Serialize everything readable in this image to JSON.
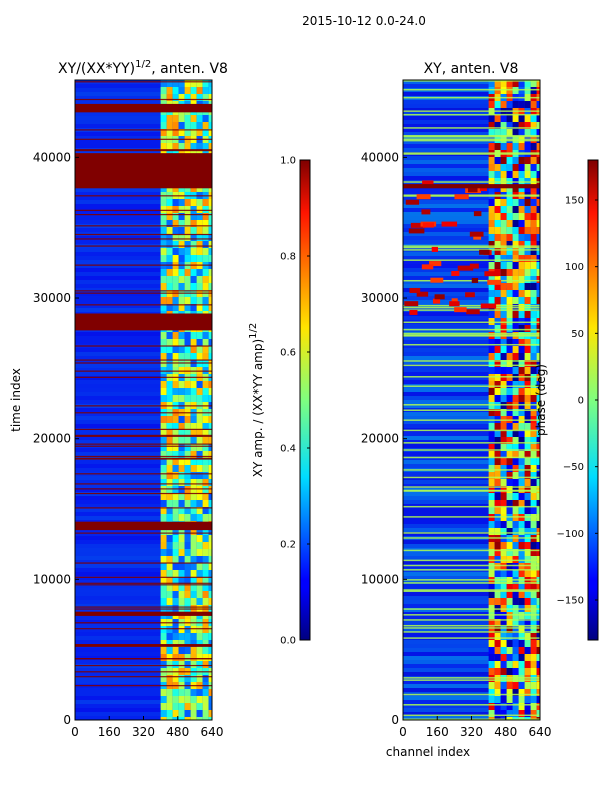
{
  "suptitle": "2015-10-12 0.0-24.0",
  "chart_data": [
    {
      "type": "heatmap",
      "title_main": "XY/(XX*YY)",
      "title_sup": "1/2",
      "title_rest": ", anten. V8",
      "xlabel": "",
      "ylabel": "time index",
      "xlim": [
        0,
        640
      ],
      "ylim": [
        0,
        45500
      ],
      "xticks": [
        0,
        160,
        320,
        480,
        640
      ],
      "xtick_labels": [
        "0",
        "160",
        "320",
        "480",
        "640"
      ],
      "yticks": [
        0,
        10000,
        20000,
        30000,
        40000
      ],
      "ytick_labels": [
        "0",
        "10000",
        "20000",
        "30000",
        "40000"
      ],
      "colorbar": {
        "label_main": "XY amp. / (XX*YY amp)",
        "label_sup": "1/2",
        "min": 0.0,
        "max": 1.0,
        "ticks": [
          0.0,
          0.2,
          0.4,
          0.6,
          0.8,
          1.0
        ],
        "tick_labels": [
          "0.0",
          "0.2",
          "0.4",
          "0.6",
          "0.8",
          "1.0"
        ],
        "colormap": "jet"
      },
      "signal_band": {
        "channel_start": 400,
        "channel_end": 640
      },
      "saturated_bands": [
        {
          "t_start": 43200,
          "t_end": 43800,
          "value": 1.0
        },
        {
          "t_start": 37800,
          "t_end": 40300,
          "value": 1.0
        },
        {
          "t_start": 27700,
          "t_end": 28900,
          "value": 1.0
        },
        {
          "t_start": 13500,
          "t_end": 14100,
          "value": 1.0
        },
        {
          "t_start": 7400,
          "t_end": 7700,
          "value": 1.0
        },
        {
          "t_start": 5200,
          "t_end": 5400,
          "value": 1.0
        }
      ]
    },
    {
      "type": "heatmap",
      "title_main": "XY, anten. V8",
      "xlabel": "channel index",
      "ylabel": "",
      "xlim": [
        0,
        640
      ],
      "ylim": [
        0,
        45500
      ],
      "xticks": [
        0,
        160,
        320,
        480,
        640
      ],
      "xtick_labels": [
        "0",
        "160",
        "320",
        "480",
        "640"
      ],
      "yticks": [
        0,
        10000,
        20000,
        30000,
        40000
      ],
      "ytick_labels": [
        "0",
        "10000",
        "20000",
        "30000",
        "40000"
      ],
      "colorbar": {
        "label_main": "phase (deg)",
        "min": -180,
        "max": 180,
        "ticks": [
          -150,
          -100,
          -50,
          0,
          50,
          100,
          150
        ],
        "tick_labels": [
          "−150",
          "−100",
          "−50",
          "0",
          "50",
          "100",
          "150"
        ],
        "colormap": "jet"
      },
      "signal_band": {
        "channel_start": 400,
        "channel_end": 640
      },
      "saturated_bands": [
        {
          "t_start": 37800,
          "t_end": 38100,
          "value": 180
        }
      ]
    }
  ],
  "colors": {
    "jet_low": "#00007f",
    "jet_mid": "#7fff7f",
    "jet_high": "#7f0000",
    "background_blue": "#0a2bd8",
    "band_red": "#800000"
  }
}
